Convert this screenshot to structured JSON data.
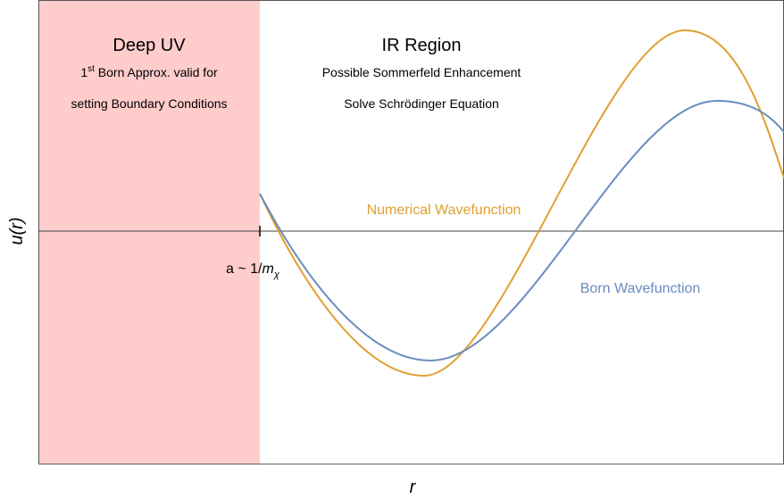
{
  "regions": {
    "uv": {
      "title": "Deep UV",
      "line1": {
        "base": "1",
        "sup": "st",
        "rest": " Born Approx. valid for"
      },
      "line2": "setting Boundary Conditions"
    },
    "ir": {
      "title": "IR Region",
      "line1": "Possible Sommerfeld Enhancement",
      "line2": "Solve Schrödinger Equation"
    }
  },
  "curves": {
    "numerical": "Numerical Wavefunction",
    "born": "Born Wavefunction"
  },
  "marker": {
    "prefix": "a ~ 1/",
    "m": "m",
    "sub": "χ"
  },
  "axes": {
    "y": "u(r)",
    "x": "r"
  }
}
